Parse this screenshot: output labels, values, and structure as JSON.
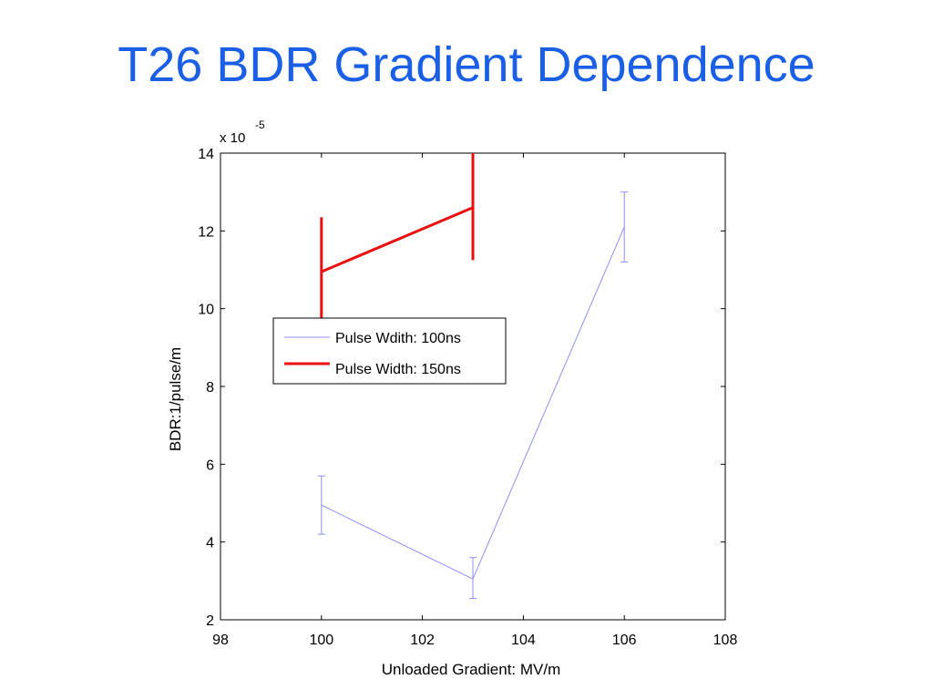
{
  "page": {
    "title": "T26 BDR Gradient Dependence"
  },
  "colors": {
    "title": "#1a5fe6",
    "series_100ns": "#8f8ff5",
    "series_150ns": "#e81010"
  },
  "chart_data": {
    "type": "line",
    "title": "T26 BDR Gradient Dependence",
    "xlabel": "Unloaded Gradient: MV/m",
    "ylabel": "BDR:1/pulse/m",
    "y_multiplier_base": "x 10",
    "y_multiplier_exponent": "-5",
    "xlim": [
      98,
      108
    ],
    "ylim": [
      2,
      14
    ],
    "xticks": [
      "98",
      "100",
      "102",
      "104",
      "106",
      "108"
    ],
    "yticks": [
      "2",
      "4",
      "6",
      "8",
      "10",
      "12",
      "14"
    ],
    "grid": false,
    "legend_position": "upper-left",
    "series": [
      {
        "name": "Pulse Wdith: 100ns",
        "x": [
          100,
          103,
          106
        ],
        "y": [
          4.95,
          3.05,
          12.1
        ],
        "err_low": [
          4.2,
          2.55,
          11.2
        ],
        "err_high": [
          5.7,
          3.6,
          13.0
        ],
        "color": "#8f8ff5",
        "linewidth": "thin"
      },
      {
        "name": "Pulse Width: 150ns",
        "x": [
          100,
          103
        ],
        "y": [
          10.95,
          12.6
        ],
        "err_low": [
          9.5,
          11.25
        ],
        "err_high": [
          12.35,
          14.0
        ],
        "color": "#e81010",
        "linewidth": "thick"
      }
    ]
  }
}
